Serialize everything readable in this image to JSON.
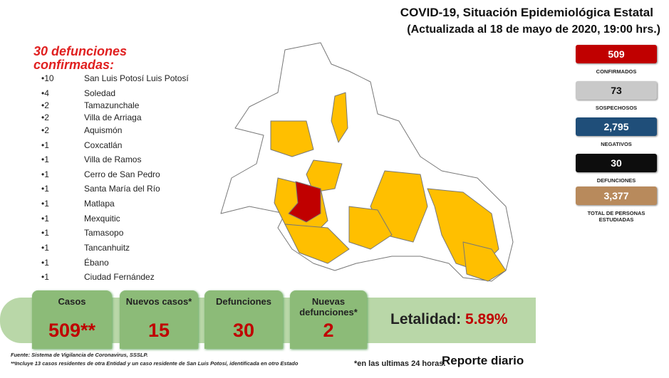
{
  "header": {
    "title": "COVID-19, Situación Epidemiológica Estatal",
    "subtitle": "(Actualizada al 18 de mayo de 2020, 19:00 hrs.)"
  },
  "deaths": {
    "title": "30 defunciones confirmadas:",
    "rows": [
      {
        "count": 10,
        "municipality": "San Luis Potosí Luis Potosí"
      },
      {
        "count": 4,
        "municipality": "Soledad"
      },
      {
        "count": 2,
        "municipality": "Tamazunchale"
      },
      {
        "count": 2,
        "municipality": "Villa de Arriaga"
      },
      {
        "count": 2,
        "municipality": "Aquismón"
      },
      {
        "count": 1,
        "municipality": "Coxcatlán"
      },
      {
        "count": 1,
        "municipality": "Villa de Ramos"
      },
      {
        "count": 1,
        "municipality": "Cerro de San Pedro"
      },
      {
        "count": 1,
        "municipality": "Santa María del Río"
      },
      {
        "count": 1,
        "municipality": "Matlapa"
      },
      {
        "count": 1,
        "municipality": "Mexquitic"
      },
      {
        "count": 1,
        "municipality": "Tamasopo"
      },
      {
        "count": 1,
        "municipality": "Tancanhuitz"
      },
      {
        "count": 1,
        "municipality": "Ébano"
      },
      {
        "count": 1,
        "municipality": "Ciudad Fernández"
      }
    ]
  },
  "stats": [
    {
      "value": "509",
      "label": "CONFIRMADOS",
      "color": "#c00000"
    },
    {
      "value": "73",
      "label": "SOSPECHOSOS",
      "color": "#c9c9c9"
    },
    {
      "value": "2,795",
      "label": "NEGATIVOS",
      "color": "#1f4e79"
    },
    {
      "value": "30",
      "label": "DEFUNCIONES",
      "color": "#0d0d0d"
    },
    {
      "value": "3,377",
      "label": "TOTAL DE PERSONAS ESTUDIADAS",
      "color": "#b88a5c"
    }
  ],
  "summary": [
    {
      "label": "Casos",
      "value": "509**"
    },
    {
      "label": "Nuevos casos*",
      "value": "15"
    },
    {
      "label": "Defunciones",
      "value": "30"
    },
    {
      "label": "Nuevas defunciones*",
      "value": "2"
    }
  ],
  "lethality": {
    "label": "Letalidad:",
    "value": "5.89%"
  },
  "footer": {
    "source": "Fuente: Sistema de Vigilancia de Coronavirus, SSSLP.",
    "note": "**Incluye 13 casos residentes de otra Entidad y un caso residente de San Luis Potosí, identificada en otro Estado",
    "note2": "*en las ultimas 24 horas.",
    "report": "Reporte diario"
  }
}
